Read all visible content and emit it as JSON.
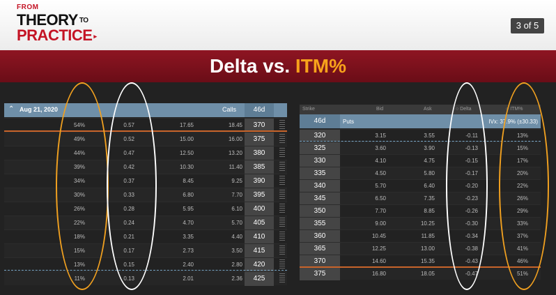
{
  "logo": {
    "from": "FROM",
    "theory": "THEORY",
    "to": "TO",
    "practice": "PRACTICE",
    "arrow": "▸"
  },
  "counter": "3 of 5",
  "slide": {
    "title_main": "Delta vs. ",
    "title_highlight": "ITM%"
  },
  "calls": {
    "header": {
      "date": "Aug 21, 2020",
      "type": "Calls",
      "dte": "46d"
    },
    "rows": [
      {
        "itm": "54%",
        "delta": "0.57",
        "bid": "17.65",
        "ask": "18.45",
        "strike": "370"
      },
      {
        "itm": "49%",
        "delta": "0.52",
        "bid": "15.00",
        "ask": "16.00",
        "strike": "375"
      },
      {
        "itm": "44%",
        "delta": "0.47",
        "bid": "12.50",
        "ask": "13.20",
        "strike": "380"
      },
      {
        "itm": "39%",
        "delta": "0.42",
        "bid": "10.30",
        "ask": "11.40",
        "strike": "385"
      },
      {
        "itm": "34%",
        "delta": "0.37",
        "bid": "8.45",
        "ask": "9.25",
        "strike": "390"
      },
      {
        "itm": "30%",
        "delta": "0.33",
        "bid": "6.80",
        "ask": "7.70",
        "strike": "395"
      },
      {
        "itm": "26%",
        "delta": "0.28",
        "bid": "5.95",
        "ask": "6.10",
        "strike": "400"
      },
      {
        "itm": "22%",
        "delta": "0.24",
        "bid": "4.70",
        "ask": "5.70",
        "strike": "405"
      },
      {
        "itm": "18%",
        "delta": "0.21",
        "bid": "3.35",
        "ask": "4.40",
        "strike": "410"
      },
      {
        "itm": "15%",
        "delta": "0.17",
        "bid": "2.73",
        "ask": "3.50",
        "strike": "415"
      },
      {
        "itm": "13%",
        "delta": "0.15",
        "bid": "2.40",
        "ask": "2.80",
        "strike": "420"
      },
      {
        "itm": "11%",
        "delta": "0.13",
        "bid": "2.01",
        "ask": "2.36",
        "strike": "425"
      }
    ]
  },
  "puts": {
    "columns": {
      "strike": "Strike",
      "bid": "Bid",
      "ask": "Ask",
      "delta": "Delta",
      "itm": "ITM%"
    },
    "header": {
      "dte": "46d",
      "type": "Puts",
      "ivx": "IVx: 37.9% (±30.33)"
    },
    "rows": [
      {
        "strike": "320",
        "bid": "3.15",
        "ask": "3.55",
        "delta": "-0.11",
        "itm": "13%"
      },
      {
        "strike": "325",
        "bid": "3.60",
        "ask": "3.90",
        "delta": "-0.13",
        "itm": "15%"
      },
      {
        "strike": "330",
        "bid": "4.10",
        "ask": "4.75",
        "delta": "-0.15",
        "itm": "17%"
      },
      {
        "strike": "335",
        "bid": "4.50",
        "ask": "5.80",
        "delta": "-0.17",
        "itm": "20%"
      },
      {
        "strike": "340",
        "bid": "5.70",
        "ask": "6.40",
        "delta": "-0.20",
        "itm": "22%"
      },
      {
        "strike": "345",
        "bid": "6.50",
        "ask": "7.35",
        "delta": "-0.23",
        "itm": "26%"
      },
      {
        "strike": "350",
        "bid": "7.70",
        "ask": "8.85",
        "delta": "-0.26",
        "itm": "29%"
      },
      {
        "strike": "355",
        "bid": "9.00",
        "ask": "10.25",
        "delta": "-0.30",
        "itm": "33%"
      },
      {
        "strike": "360",
        "bid": "10.45",
        "ask": "11.85",
        "delta": "-0.34",
        "itm": "37%"
      },
      {
        "strike": "365",
        "bid": "12.25",
        "ask": "13.00",
        "delta": "-0.38",
        "itm": "41%"
      },
      {
        "strike": "370",
        "bid": "14.60",
        "ask": "15.35",
        "delta": "-0.43",
        "itm": "46%"
      },
      {
        "strike": "375",
        "bid": "16.80",
        "ask": "18.05",
        "delta": "-0.47",
        "itm": "51%"
      }
    ]
  },
  "colors": {
    "brand_red": "#c41425",
    "band": "#7a111c",
    "highlight": "#f7a21b",
    "oval_orange": "#f0a020",
    "oval_white": "#ffffff",
    "header_blue": "#6f8fa8"
  }
}
